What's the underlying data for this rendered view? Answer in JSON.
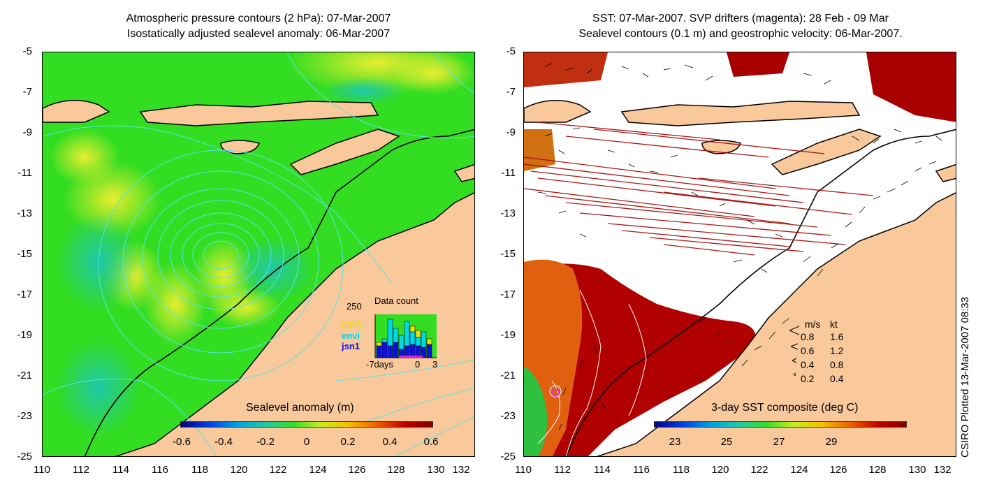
{
  "left_panel": {
    "title_line1": "Atmospheric pressure contours (2 hPa): 07-Mar-2007",
    "title_line2": "Isostatically adjusted sealevel anomaly: 06-Mar-2007",
    "y_ticks": [
      "-5",
      "-7",
      "-9",
      "-11",
      "-13",
      "-15",
      "-17",
      "-19",
      "-21",
      "-23",
      "-25"
    ],
    "x_ticks": [
      "110",
      "112",
      "114",
      "116",
      "118",
      "120",
      "122",
      "124",
      "126",
      "128",
      "130",
      "132"
    ],
    "colorbar_title": "Sealevel anomaly (m)",
    "colorbar_ticks": [
      "-0.6",
      "-0.4",
      "-0.2",
      "0",
      "0.2",
      "0.4",
      "0.6"
    ],
    "inset": {
      "title": "Data count",
      "y_max_label": "250",
      "satellites": [
        {
          "name": "GFO",
          "color": "#e8e000"
        },
        {
          "name": "envi",
          "color": "#00d8e8"
        },
        {
          "name": "jsn1",
          "color": "#1010e0"
        }
      ],
      "x_left_label": "-7days",
      "x_mid_label": "0",
      "x_right_label": "3"
    }
  },
  "right_panel": {
    "title_line1": "SST: 07-Mar-2007. SVP drifters (magenta): 28 Feb - 09 Mar",
    "title_line2": "Sealevel contours (0.1 m) and geostrophic velocity: 06-Mar-2007.",
    "y_ticks": [
      "-5",
      "-7",
      "-9",
      "-11",
      "-13",
      "-15",
      "-17",
      "-19",
      "-21",
      "-23",
      "-25"
    ],
    "x_ticks": [
      "110",
      "112",
      "114",
      "116",
      "118",
      "120",
      "122",
      "124",
      "126",
      "128",
      "130",
      "132"
    ],
    "colorbar_title": "3-day SST composite (deg C)",
    "colorbar_ticks": [
      "23",
      "25",
      "27",
      "29"
    ],
    "velocity_legend": {
      "header_ms": "m/s",
      "header_kt": "kt",
      "rows": [
        {
          "ms": "0.8",
          "kt": "1.6"
        },
        {
          "ms": "0.6",
          "kt": "1.2"
        },
        {
          "ms": "0.4",
          "kt": "0.8"
        },
        {
          "ms": "0.2",
          "kt": "0.4"
        }
      ]
    }
  },
  "credit": "CSIRO Plotted 13-Mar-2007 08:33",
  "colors": {
    "land": "#f9c89b",
    "sla_green": "#22dd22",
    "sla_yellow": "#ccee22",
    "sla_cyan": "#22ccaa",
    "sst_red": "#b00000",
    "sst_orange": "#e06010",
    "contour_cyan": "#55e5e5"
  }
}
